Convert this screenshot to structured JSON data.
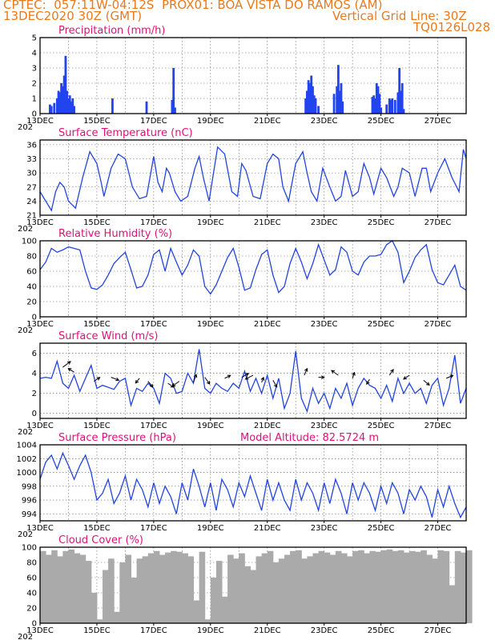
{
  "header": {
    "line1_left": "CPTEC:",
    "coords": "057:11W-04:12S",
    "location": "PROX01: BOA VISTA DO RAMOS (AM)",
    "date": "13DEC2020 30Z (GMT)",
    "grid_line": "Vertical Grid Line: 30Z",
    "code": "TQ0126L028"
  },
  "x_axis": {
    "ticks": [
      "13DEC",
      "15DEC",
      "17DEC",
      "19DEC",
      "21DEC",
      "23DEC",
      "25DEC",
      "27DEC"
    ],
    "start_day": 13.0,
    "end_day": 28.0,
    "year_stub": "202"
  },
  "colors": {
    "line": "#2244dd",
    "bar": "#2244ee",
    "cloud": "#aaaaaa",
    "title": "#e0107a",
    "header": "#e87a1e"
  },
  "chart_data": [
    {
      "type": "bar",
      "title": "Precipitation (mm/h)",
      "ylim": [
        0,
        5
      ],
      "yticks": [
        "0",
        "1",
        "2",
        "3",
        "4",
        "5"
      ],
      "x": [
        13.35,
        13.4,
        13.5,
        13.6,
        13.65,
        13.7,
        13.75,
        13.8,
        13.85,
        13.9,
        13.95,
        14.0,
        14.05,
        14.1,
        14.15,
        14.2,
        15.55,
        16.75,
        17.65,
        17.7,
        17.75,
        22.35,
        22.4,
        22.45,
        22.5,
        22.55,
        22.6,
        22.65,
        22.7,
        22.8,
        23.35,
        23.45,
        23.5,
        23.55,
        23.6,
        23.65,
        24.7,
        24.75,
        24.8,
        24.85,
        24.9,
        24.95,
        25.0,
        25.2,
        25.3,
        25.35,
        25.4,
        25.5,
        25.6,
        25.65,
        25.7,
        25.75,
        25.8
      ],
      "values": [
        0.6,
        0.5,
        0.7,
        1.0,
        1.5,
        1.4,
        2.0,
        1.8,
        2.5,
        3.8,
        1.5,
        1.0,
        1.2,
        0.8,
        1.0,
        0.5,
        1.0,
        0.8,
        0.9,
        3.0,
        0.4,
        1.0,
        1.5,
        2.2,
        2.0,
        2.5,
        1.8,
        1.2,
        1.0,
        0.5,
        1.3,
        1.8,
        3.2,
        1.5,
        2.0,
        0.8,
        1.1,
        1.2,
        1.0,
        2.0,
        1.8,
        1.3,
        0.4,
        0.6,
        1.0,
        0.9,
        1.0,
        0.9,
        1.4,
        3.0,
        1.5,
        2.0,
        0.3
      ]
    },
    {
      "type": "line",
      "title": "Surface Temperature (nC)",
      "ylim": [
        21,
        37
      ],
      "yticks": [
        "21",
        "24",
        "27",
        "30",
        "33",
        "36"
      ],
      "x": [
        13.0,
        13.1,
        13.25,
        13.4,
        13.55,
        13.7,
        13.85,
        14.0,
        14.25,
        14.5,
        14.75,
        15.0,
        15.15,
        15.25,
        15.5,
        15.75,
        16.0,
        16.25,
        16.5,
        16.75,
        17.0,
        17.15,
        17.3,
        17.45,
        17.55,
        17.75,
        17.95,
        18.2,
        18.45,
        18.6,
        18.75,
        18.95,
        19.25,
        19.5,
        19.75,
        19.95,
        20.1,
        20.25,
        20.5,
        20.75,
        21.0,
        21.2,
        21.4,
        21.55,
        21.75,
        22.0,
        22.25,
        22.4,
        22.55,
        22.75,
        22.95,
        23.2,
        23.4,
        23.6,
        23.75,
        24.0,
        24.2,
        24.4,
        24.6,
        24.75,
        25.0,
        25.2,
        25.45,
        25.6,
        25.75,
        26.0,
        26.2,
        26.45,
        26.6,
        26.75,
        27.0,
        27.25,
        27.5,
        27.75,
        27.9,
        28.0
      ],
      "values": [
        26,
        25,
        23.5,
        22,
        26,
        28,
        27,
        24,
        22.5,
        29,
        34.5,
        32,
        28,
        25,
        31,
        34,
        33,
        27,
        24.5,
        25,
        33.5,
        28,
        26,
        31,
        30,
        26,
        24,
        25,
        31,
        33.5,
        29,
        24,
        35.5,
        34,
        26,
        25,
        32,
        30.5,
        25,
        24.5,
        32,
        34,
        33,
        27,
        24,
        32,
        34.5,
        30,
        26,
        24,
        31,
        27,
        24,
        25,
        30.5,
        25,
        26,
        32,
        29,
        25.5,
        31,
        29,
        25,
        27,
        31,
        30,
        25,
        31,
        31,
        26,
        30,
        33,
        29,
        26,
        35,
        33
      ]
    },
    {
      "type": "line",
      "title": "Relative Humidity (%)",
      "ylim": [
        0,
        100
      ],
      "yticks": [
        "0",
        "20",
        "40",
        "60",
        "80",
        "100"
      ],
      "x": [
        13.0,
        13.2,
        13.4,
        13.6,
        13.8,
        14.0,
        14.2,
        14.4,
        14.6,
        14.8,
        15.0,
        15.2,
        15.4,
        15.6,
        15.8,
        16.0,
        16.2,
        16.4,
        16.6,
        16.8,
        17.0,
        17.2,
        17.4,
        17.6,
        17.8,
        18.0,
        18.2,
        18.4,
        18.6,
        18.8,
        19.0,
        19.2,
        19.4,
        19.6,
        19.8,
        20.0,
        20.2,
        20.4,
        20.6,
        20.8,
        21.0,
        21.2,
        21.4,
        21.6,
        21.8,
        22.0,
        22.2,
        22.4,
        22.6,
        22.8,
        23.0,
        23.2,
        23.4,
        23.6,
        23.8,
        24.0,
        24.2,
        24.4,
        24.6,
        24.8,
        25.0,
        25.2,
        25.4,
        25.6,
        25.8,
        26.0,
        26.2,
        26.4,
        26.6,
        26.8,
        27.0,
        27.2,
        27.4,
        27.6,
        27.8,
        28.0
      ],
      "values": [
        62,
        72,
        90,
        85,
        88,
        92,
        90,
        88,
        60,
        38,
        36,
        42,
        55,
        70,
        78,
        85,
        62,
        38,
        40,
        55,
        82,
        88,
        60,
        90,
        72,
        55,
        68,
        88,
        80,
        40,
        30,
        42,
        60,
        78,
        90,
        65,
        35,
        38,
        62,
        82,
        88,
        55,
        32,
        40,
        70,
        90,
        72,
        50,
        70,
        95,
        75,
        55,
        62,
        92,
        85,
        60,
        55,
        72,
        80,
        80,
        82,
        95,
        100,
        85,
        45,
        60,
        78,
        88,
        95,
        62,
        45,
        42,
        55,
        68,
        40,
        35
      ]
    },
    {
      "type": "line",
      "title": "Surface Wind (m/s)",
      "ylim": [
        -0.5,
        7
      ],
      "yticks": [
        "0",
        "2",
        "4",
        "6"
      ],
      "x": [
        13.0,
        13.2,
        13.4,
        13.6,
        13.8,
        14.0,
        14.2,
        14.4,
        14.6,
        14.8,
        15.0,
        15.2,
        15.4,
        15.6,
        15.8,
        16.0,
        16.2,
        16.4,
        16.6,
        16.8,
        17.0,
        17.2,
        17.4,
        17.6,
        17.8,
        18.0,
        18.2,
        18.4,
        18.6,
        18.8,
        19.0,
        19.2,
        19.4,
        19.6,
        19.8,
        20.0,
        20.2,
        20.4,
        20.6,
        20.8,
        21.0,
        21.2,
        21.4,
        21.6,
        21.8,
        22.0,
        22.2,
        22.4,
        22.6,
        22.8,
        23.0,
        23.2,
        23.4,
        23.6,
        23.8,
        24.0,
        24.2,
        24.4,
        24.6,
        24.8,
        25.0,
        25.2,
        25.4,
        25.6,
        25.8,
        26.0,
        26.2,
        26.4,
        26.6,
        26.8,
        27.0,
        27.2,
        27.4,
        27.6,
        27.8,
        28.0
      ],
      "values": [
        3.5,
        3.6,
        3.5,
        5.2,
        3.0,
        2.5,
        3.8,
        2.2,
        3.5,
        4.8,
        2.5,
        2.8,
        2.6,
        2.4,
        3.2,
        3.5,
        0.8,
        2.5,
        2.2,
        3.0,
        2.5,
        1.0,
        4.0,
        3.5,
        2.0,
        2.2,
        4.0,
        3.0,
        6.4,
        2.5,
        2.0,
        3.0,
        2.5,
        2.2,
        3.0,
        2.5,
        4.2,
        2.2,
        3.5,
        2.0,
        3.8,
        1.5,
        3.5,
        0.5,
        2.0,
        6.2,
        1.5,
        0.2,
        2.5,
        1.0,
        2.0,
        0.5,
        2.5,
        1.5,
        3.0,
        0.8,
        2.5,
        3.5,
        2.8,
        2.5,
        1.5,
        2.8,
        1.2,
        3.5,
        2.0,
        3.0,
        2.0,
        2.5,
        1.0,
        2.8,
        3.5,
        0.8,
        2.5,
        5.8,
        1.0,
        2.5
      ],
      "vectors_u": [
        0.8,
        -0.6,
        0.6,
        0.8,
        -0.4,
        0.5,
        0.6,
        -0.7,
        0.3,
        0.5,
        0.6,
        0.7,
        -0.8,
        0.2,
        0.4,
        0.3,
        0.6,
        -0.7,
        0.2,
        -0.3,
        0.4,
        -0.6,
        0.6,
        0.7
      ],
      "vectors_v": [
        0.6,
        0.4,
        0.4,
        -0.3,
        -0.5,
        -0.6,
        -0.4,
        -0.5,
        0.8,
        -0.7,
        0.3,
        0.4,
        -0.4,
        0.5,
        -0.7,
        0.7,
        0.0,
        0.5,
        0.6,
        -0.5,
        0.6,
        -0.4,
        -0.5,
        0.3
      ],
      "vectors_x": [
        13.8,
        14.2,
        14.9,
        15.5,
        16.5,
        16.8,
        17.5,
        17.9,
        18.4,
        18.8,
        19.5,
        20.1,
        20.5,
        20.8,
        21.2,
        22.3,
        22.8,
        23.5,
        24.0,
        24.6,
        25.3,
        26.0,
        26.5,
        27.3
      ],
      "vectors_y": [
        4.6,
        4.1,
        3.2,
        3.6,
        3.5,
        3.2,
        3.0,
        3.2,
        3.1,
        3.6,
        3.5,
        3.6,
        3.8,
        3.1,
        3.3,
        3.8,
        3.6,
        3.8,
        3.5,
        3.4,
        3.8,
        3.8,
        3.3,
        3.5
      ]
    },
    {
      "type": "line",
      "title": "Surface Pressure (hPa)",
      "extra_label": "Model Altitude: 82.5724 m",
      "ylim": [
        993,
        1004
      ],
      "yticks": [
        "994",
        "996",
        "998",
        "1000",
        "1002",
        "1004"
      ],
      "x": [
        13.0,
        13.2,
        13.4,
        13.6,
        13.8,
        14.0,
        14.2,
        14.4,
        14.6,
        14.8,
        15.0,
        15.2,
        15.4,
        15.6,
        15.8,
        16.0,
        16.2,
        16.4,
        16.6,
        16.8,
        17.0,
        17.2,
        17.4,
        17.6,
        17.8,
        18.0,
        18.2,
        18.4,
        18.6,
        18.8,
        19.0,
        19.2,
        19.4,
        19.6,
        19.8,
        20.0,
        20.2,
        20.4,
        20.6,
        20.8,
        21.0,
        21.2,
        21.4,
        21.6,
        21.8,
        22.0,
        22.2,
        22.4,
        22.6,
        22.8,
        23.0,
        23.2,
        23.4,
        23.6,
        23.8,
        24.0,
        24.2,
        24.4,
        24.6,
        24.8,
        25.0,
        25.2,
        25.4,
        25.6,
        25.8,
        26.0,
        26.2,
        26.4,
        26.6,
        26.8,
        27.0,
        27.2,
        27.4,
        27.6,
        27.8,
        28.0
      ],
      "values": [
        999,
        1001.5,
        1002.5,
        1000.5,
        1002.8,
        1001,
        999,
        1001,
        1002.5,
        1000,
        996,
        997,
        999,
        995.5,
        997,
        999.5,
        996,
        999,
        997.5,
        995,
        998.5,
        995.5,
        998,
        996.5,
        994,
        998.5,
        996,
        1000.5,
        998,
        995,
        998.5,
        994.5,
        999,
        997.5,
        995,
        998.5,
        996.5,
        999.5,
        997,
        994.5,
        999,
        996,
        998.5,
        996,
        994.5,
        999,
        996,
        998.5,
        997,
        994.5,
        998.5,
        995.5,
        999,
        997,
        994,
        998.5,
        996,
        998.5,
        997,
        994.5,
        998,
        995.5,
        998.5,
        997,
        994,
        997.5,
        996,
        998,
        996.5,
        993.5,
        997.5,
        995,
        998,
        995.5,
        993.5,
        995
      ]
    },
    {
      "type": "area",
      "title": "Cloud Cover (%)",
      "ylim": [
        0,
        100
      ],
      "yticks": [
        "0",
        "20",
        "40",
        "60",
        "80",
        "100"
      ],
      "x": [
        13.0,
        13.2,
        13.4,
        13.6,
        13.8,
        14.0,
        14.2,
        14.4,
        14.6,
        14.8,
        15.0,
        15.2,
        15.4,
        15.6,
        15.8,
        16.0,
        16.2,
        16.4,
        16.6,
        16.8,
        17.0,
        17.2,
        17.4,
        17.6,
        17.8,
        18.0,
        18.2,
        18.4,
        18.6,
        18.8,
        19.0,
        19.2,
        19.4,
        19.6,
        19.8,
        20.0,
        20.2,
        20.4,
        20.6,
        20.8,
        21.0,
        21.2,
        21.4,
        21.6,
        21.8,
        22.0,
        22.2,
        22.4,
        22.6,
        22.8,
        23.0,
        23.2,
        23.4,
        23.6,
        23.8,
        24.0,
        24.2,
        24.4,
        24.6,
        24.8,
        25.0,
        25.2,
        25.4,
        25.6,
        25.8,
        26.0,
        26.2,
        26.4,
        26.6,
        26.8,
        27.0,
        27.2,
        27.4,
        27.6,
        27.8,
        28.0
      ],
      "values": [
        95,
        90,
        96,
        88,
        95,
        97,
        92,
        90,
        82,
        40,
        5,
        70,
        85,
        15,
        80,
        90,
        60,
        85,
        88,
        92,
        95,
        90,
        93,
        95,
        94,
        92,
        88,
        30,
        94,
        5,
        60,
        82,
        35,
        90,
        85,
        92,
        75,
        70,
        88,
        92,
        95,
        80,
        85,
        90,
        95,
        96,
        85,
        88,
        92,
        95,
        93,
        90,
        95,
        92,
        88,
        95,
        96,
        92,
        95,
        94,
        96,
        97,
        95,
        96,
        93,
        95,
        94,
        96,
        90,
        85,
        96,
        95,
        50,
        95,
        93,
        96
      ]
    }
  ]
}
